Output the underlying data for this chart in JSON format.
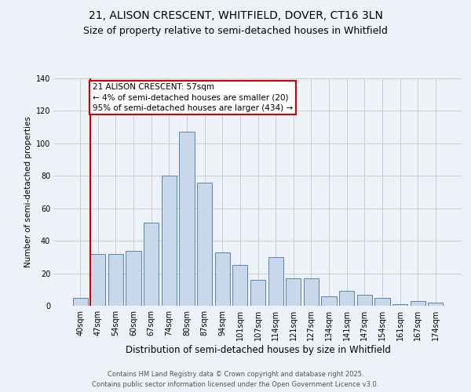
{
  "title_line1": "21, ALISON CRESCENT, WHITFIELD, DOVER, CT16 3LN",
  "title_line2": "Size of property relative to semi-detached houses in Whitfield",
  "xlabel": "Distribution of semi-detached houses by size in Whitfield",
  "ylabel": "Number of semi-detached properties",
  "categories": [
    "40sqm",
    "47sqm",
    "54sqm",
    "60sqm",
    "67sqm",
    "74sqm",
    "80sqm",
    "87sqm",
    "94sqm",
    "101sqm",
    "107sqm",
    "114sqm",
    "121sqm",
    "127sqm",
    "134sqm",
    "141sqm",
    "147sqm",
    "154sqm",
    "161sqm",
    "167sqm",
    "174sqm"
  ],
  "values": [
    5,
    32,
    32,
    34,
    51,
    80,
    107,
    76,
    33,
    25,
    16,
    30,
    17,
    17,
    6,
    9,
    7,
    5,
    1,
    3,
    2
  ],
  "bar_color": "#c8d8ea",
  "bar_edge_color": "#5588aa",
  "highlight_line_index": 1,
  "annotation_text_line1": "21 ALISON CRESCENT: 57sqm",
  "annotation_text_line2": "← 4% of semi-detached houses are smaller (20)",
  "annotation_text_line3": "95% of semi-detached houses are larger (434) →",
  "annotation_box_facecolor": "#ffffff",
  "annotation_box_edgecolor": "#cc0000",
  "ylim": [
    0,
    140
  ],
  "yticks": [
    0,
    20,
    40,
    60,
    80,
    100,
    120,
    140
  ],
  "grid_color": "#cccccc",
  "background_color": "#edf2f8",
  "footer_line1": "Contains HM Land Registry data © Crown copyright and database right 2025.",
  "footer_line2": "Contains public sector information licensed under the Open Government Licence v3.0.",
  "title_fontsize": 10,
  "subtitle_fontsize": 9,
  "tick_fontsize": 7,
  "ylabel_fontsize": 7.5,
  "xlabel_fontsize": 8.5,
  "annotation_fontsize": 7.5,
  "footer_fontsize": 6
}
